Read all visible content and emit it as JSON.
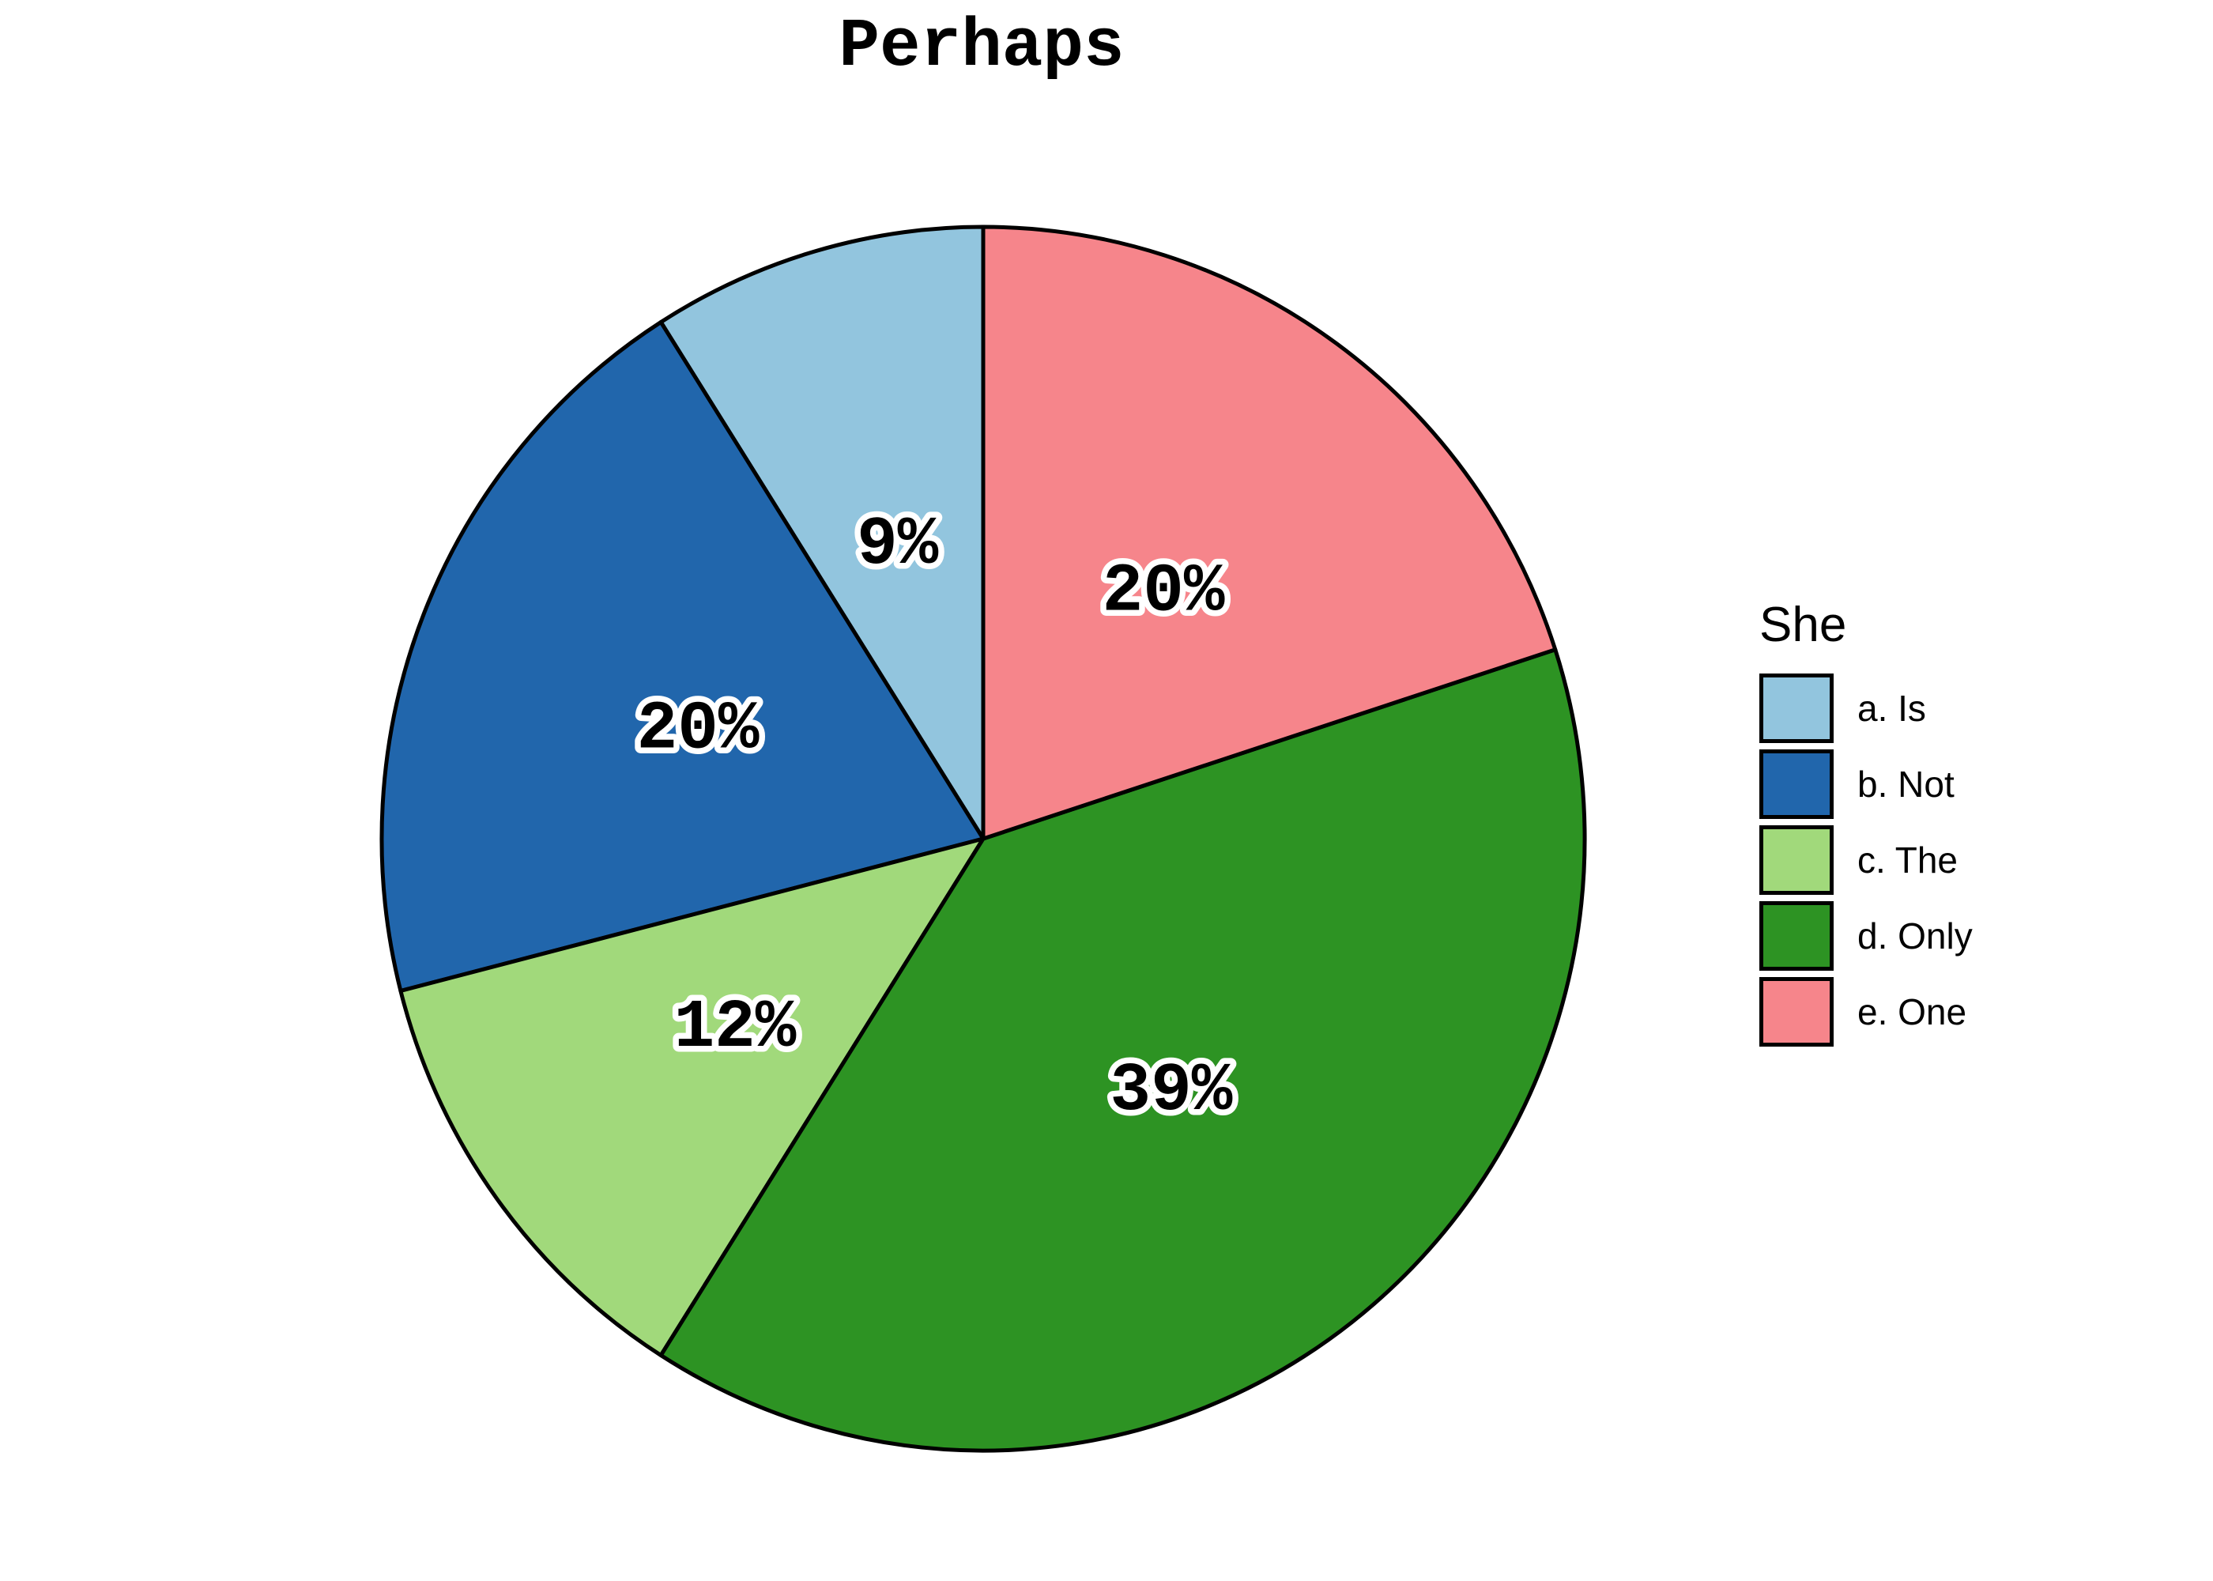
{
  "title": "Perhaps",
  "chart_data": {
    "type": "pie",
    "title": "Perhaps",
    "legend_title": "She",
    "legend_position": "right",
    "start_angle_deg": 90,
    "direction": "counterclockwise",
    "grid": false,
    "background": "#FFFFFF",
    "stroke_color": "#000000",
    "slices": [
      {
        "label": "a. Is",
        "value": 9,
        "pct_label": "9%",
        "color": "#92C5DE"
      },
      {
        "label": "b. Not",
        "value": 20,
        "pct_label": "20%",
        "color": "#2166AC"
      },
      {
        "label": "c. The",
        "value": 12,
        "pct_label": "12%",
        "color": "#A1D97B"
      },
      {
        "label": "d. Only",
        "value": 39,
        "pct_label": "39%",
        "color": "#2D9323"
      },
      {
        "label": "e. One",
        "value": 20,
        "pct_label": "20%",
        "color": "#F6858B"
      }
    ]
  }
}
